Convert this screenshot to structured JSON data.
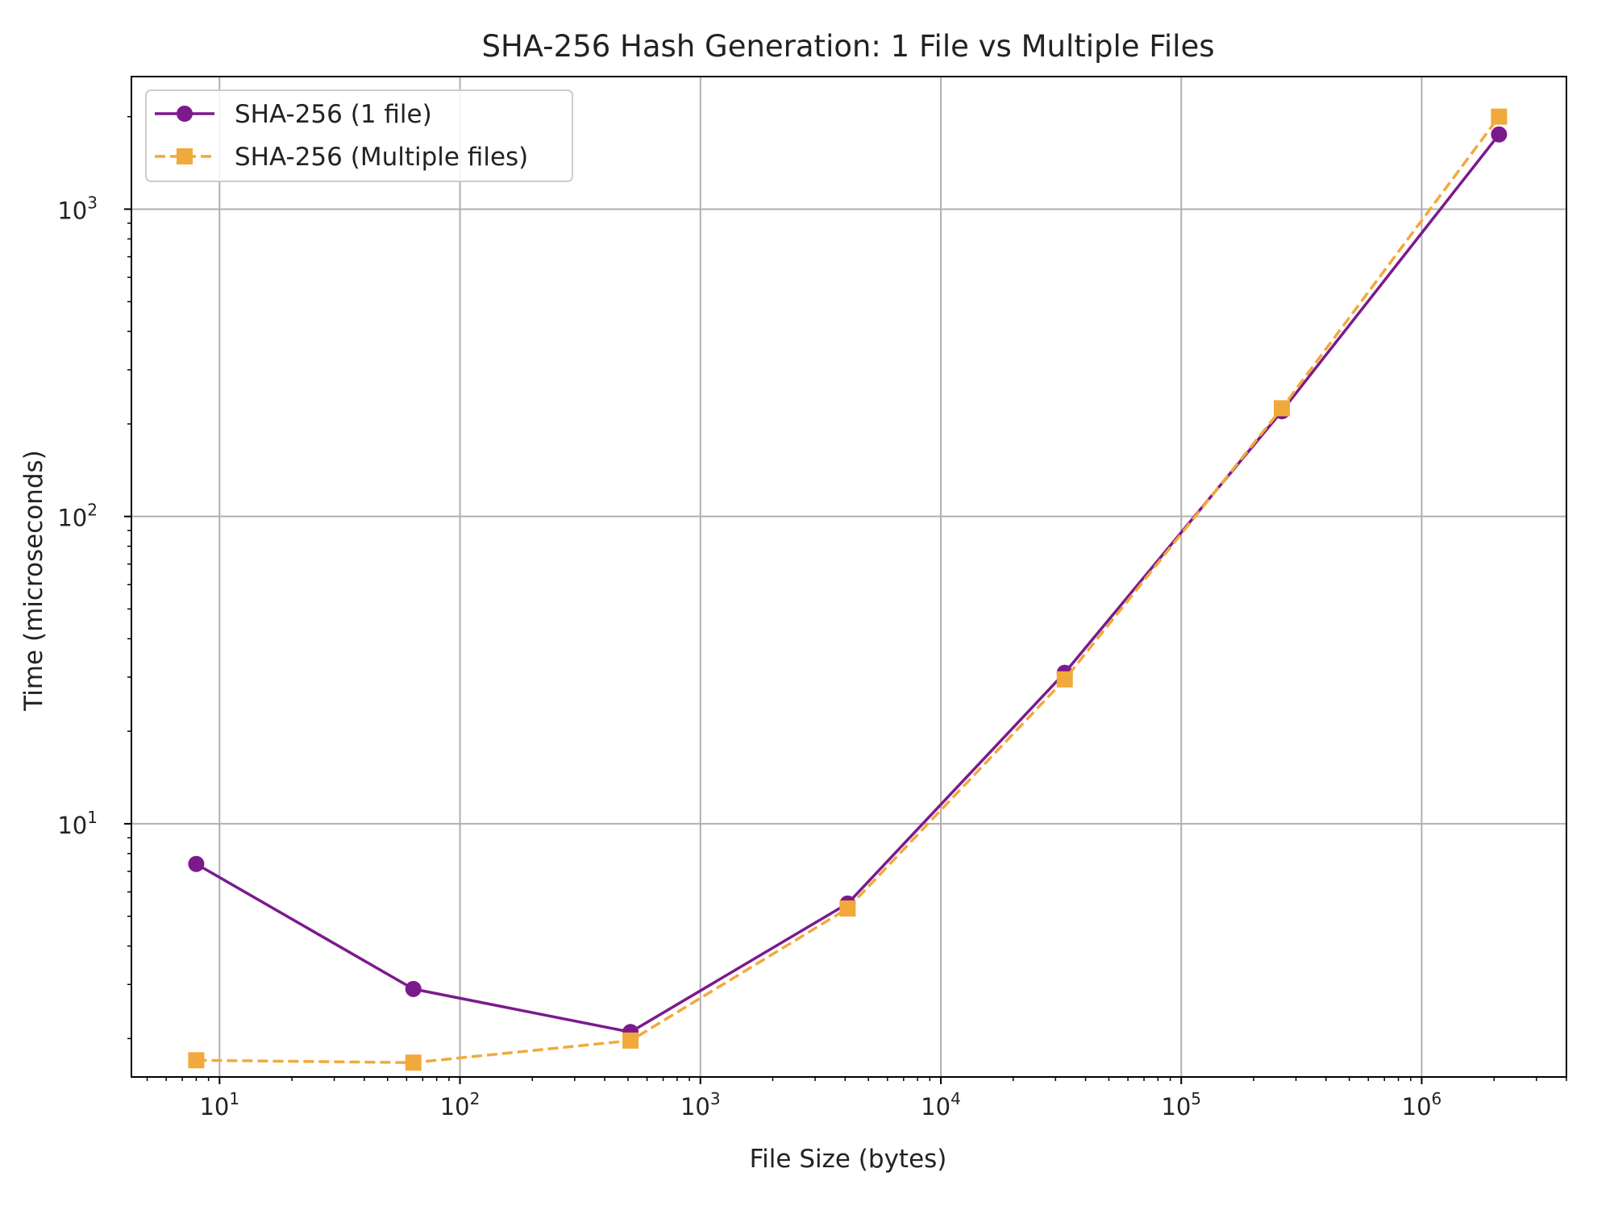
{
  "chart_data": {
    "type": "line",
    "title": "SHA-256 Hash Generation: 1 File vs Multiple Files",
    "xlabel": "File Size (bytes)",
    "ylabel": "Time (microseconds)",
    "xscale": "log",
    "yscale": "log",
    "xlim": [
      4.3,
      4000000
    ],
    "ylim": [
      1.5,
      2700
    ],
    "x_ticks": [
      {
        "value": 10,
        "base": "10",
        "exp": "1"
      },
      {
        "value": 100,
        "base": "10",
        "exp": "2"
      },
      {
        "value": 1000,
        "base": "10",
        "exp": "3"
      },
      {
        "value": 10000,
        "base": "10",
        "exp": "4"
      },
      {
        "value": 100000,
        "base": "10",
        "exp": "5"
      },
      {
        "value": 1000000,
        "base": "10",
        "exp": "6"
      }
    ],
    "y_ticks": [
      {
        "value": 10,
        "base": "10",
        "exp": "1"
      },
      {
        "value": 100,
        "base": "10",
        "exp": "2"
      },
      {
        "value": 1000,
        "base": "10",
        "exp": "3"
      }
    ],
    "grid": true,
    "legend_position": "top-left",
    "x": [
      8,
      64,
      512,
      4096,
      32768,
      262144,
      2097152
    ],
    "series": [
      {
        "name": "SHA-256 (1 file)",
        "values": [
          7.4,
          2.9,
          2.1,
          5.5,
          31,
          220,
          1750
        ],
        "color": "#7b1a8c",
        "line_style": "solid",
        "marker": "circle"
      },
      {
        "name": "SHA-256 (Multiple files)",
        "values": [
          1.7,
          1.67,
          1.97,
          5.3,
          29.5,
          225,
          2000
        ],
        "color": "#f2a93b",
        "line_style": "dashed",
        "marker": "square"
      }
    ]
  }
}
